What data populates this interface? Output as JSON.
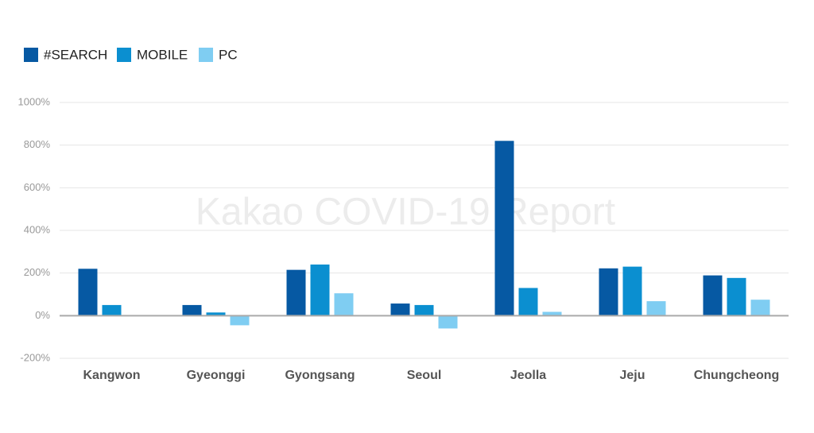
{
  "chart_data": {
    "type": "bar",
    "annotation": "Kakao COVID-19 Report",
    "categories": [
      "Kangwon",
      "Gyeonggi",
      "Gyongsang",
      "Seoul",
      "Jeolla",
      "Jeju",
      "Chungcheong"
    ],
    "series": [
      {
        "name": "#SEARCH",
        "color": "#0659a3",
        "values": [
          220,
          50,
          215,
          57,
          820,
          222,
          189
        ]
      },
      {
        "name": "MOBILE",
        "color": "#0b8fd0",
        "values": [
          50,
          15,
          240,
          50,
          130,
          230,
          177
        ]
      },
      {
        "name": "PC",
        "color": "#7fcdf2",
        "values": [
          0,
          -45,
          105,
          -60,
          18,
          68,
          75
        ]
      }
    ],
    "ylim": [
      -200,
      1000
    ],
    "yticks": [
      {
        "value": -200,
        "label": "-200%"
      },
      {
        "value": 0,
        "label": "0%"
      },
      {
        "value": 200,
        "label": "200%"
      },
      {
        "value": 400,
        "label": "400%"
      },
      {
        "value": 600,
        "label": "600%"
      },
      {
        "value": 800,
        "label": "800%"
      },
      {
        "value": 1000,
        "label": "1000%"
      }
    ],
    "grid": true,
    "legend": "top-left"
  }
}
